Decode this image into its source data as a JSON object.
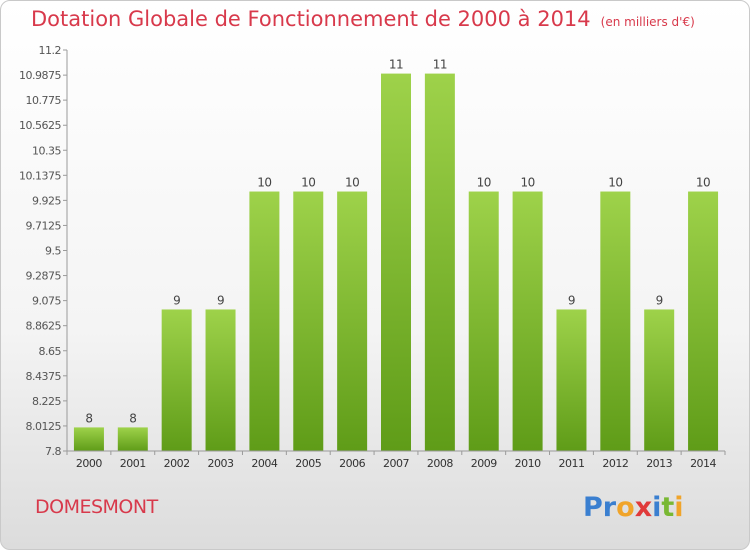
{
  "header": {
    "title": "Dotation Globale de Fonctionnement de 2000 à 2014",
    "subtitle": "(en milliers d'€)"
  },
  "footer": {
    "municipality": "DOMESMONT",
    "brand": "Proxiti"
  },
  "colors": {
    "title": "#d8394b",
    "bar_light": "#9ed24a",
    "bar_dark": "#5f9c18"
  },
  "chart_data": {
    "type": "bar",
    "title": "Dotation Globale de Fonctionnement de 2000 à 2014",
    "subtitle": "(en milliers d'€)",
    "xlabel": "",
    "ylabel": "",
    "ylim": [
      7.8,
      11.2
    ],
    "grid": false,
    "categories": [
      "2000",
      "2001",
      "2002",
      "2003",
      "2004",
      "2005",
      "2006",
      "2007",
      "2008",
      "2009",
      "2010",
      "2011",
      "2012",
      "2013",
      "2014"
    ],
    "values": [
      8,
      8,
      9,
      9,
      10,
      10,
      10,
      11,
      11,
      10,
      10,
      9,
      10,
      9,
      10
    ],
    "data_labels": [
      "8",
      "8",
      "9",
      "9",
      "10",
      "10",
      "10",
      "11",
      "11",
      "10",
      "10",
      "9",
      "10",
      "9",
      "10"
    ],
    "yticks": [
      "7.8",
      "8.0125",
      "8.225",
      "8.4375",
      "8.65",
      "8.8625",
      "9.075",
      "9.2875",
      "9.5",
      "9.7125",
      "9.925",
      "10.1375",
      "10.35",
      "10.5625",
      "10.775",
      "10.9875",
      "11.2"
    ]
  }
}
